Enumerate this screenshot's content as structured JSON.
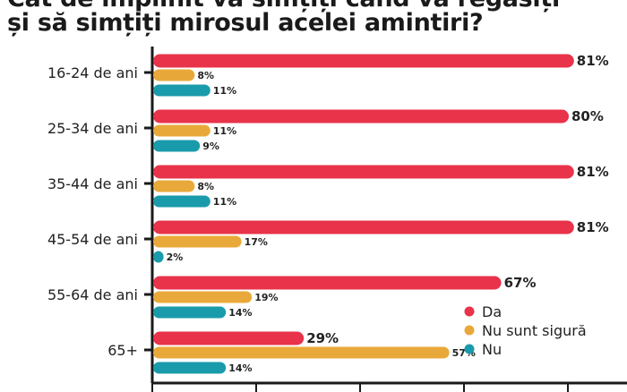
{
  "title_lines": [
    "Cât de împlinit vă simțiți când vă regăsiți",
    "și să simțiți mirosul acelei amintiri?"
  ],
  "chart_data": {
    "type": "bar",
    "orientation": "horizontal",
    "categories": [
      "16-24 de ani",
      "25-34 de ani",
      "35-44 de ani",
      "45-54 de ani",
      "55-64 de ani",
      "65+"
    ],
    "series": [
      {
        "name": "Da",
        "color": "#e8334a",
        "values": [
          81,
          80,
          81,
          81,
          67,
          29
        ]
      },
      {
        "name": "Nu sunt sigură",
        "color": "#e9a93a",
        "values": [
          8,
          11,
          8,
          17,
          19,
          57
        ]
      },
      {
        "name": "Nu",
        "color": "#1a9bab",
        "values": [
          11,
          9,
          11,
          2,
          14,
          14
        ]
      }
    ],
    "value_suffix": "%",
    "xlim": [
      0,
      90
    ],
    "legend_position": "bottom-right"
  }
}
